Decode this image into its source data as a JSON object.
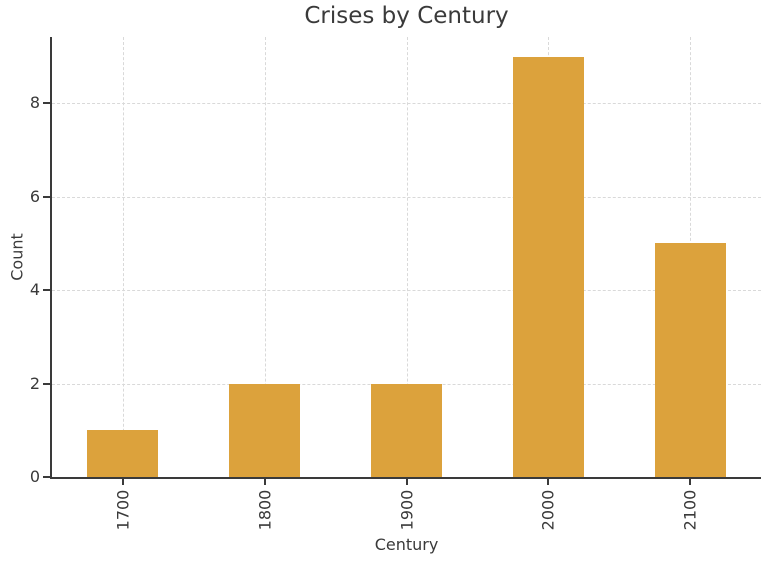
{
  "chart_data": {
    "type": "bar",
    "title": "Crises by Century",
    "xlabel": "Century",
    "ylabel": "Count",
    "categories": [
      "1700",
      "1800",
      "1900",
      "2000",
      "2100"
    ],
    "values": [
      1,
      2,
      2,
      9,
      5
    ],
    "yticks": [
      0,
      2,
      4,
      6,
      8
    ],
    "ylim": [
      0,
      9.42
    ],
    "bar_color": "#DCA23C",
    "axis_color": "#3a3a3a",
    "grid_color": "#d9d9d9",
    "grid": true,
    "legend": false,
    "x_tick_rotation": 90
  }
}
